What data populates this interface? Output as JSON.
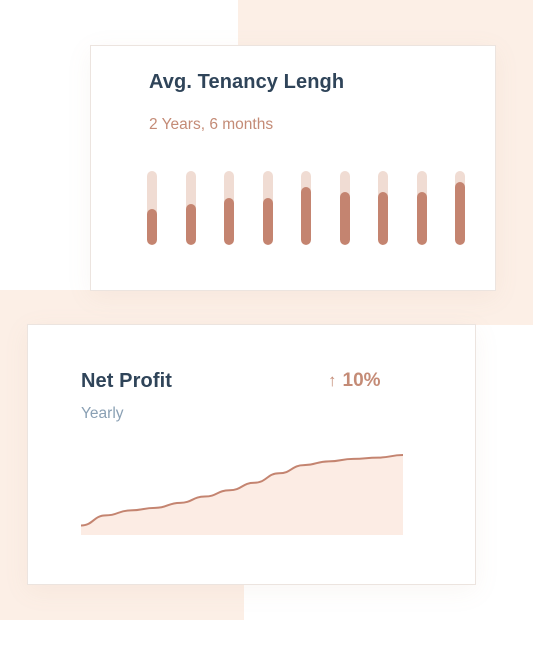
{
  "colors": {
    "background_accent": "#fcefe6",
    "title": "#2f4459",
    "accent": "#c48470",
    "bar_track": "#f0dcd3",
    "subtitle_muted": "#8aa0b4",
    "area_fill": "#fcece4"
  },
  "tenancy_card": {
    "title": "Avg. Tenancy Lengh",
    "subtitle": "2 Years, 6 months",
    "bar_levels": [
      0.48,
      0.55,
      0.63,
      0.63,
      0.78,
      0.72,
      0.72,
      0.72,
      0.85
    ]
  },
  "profit_card": {
    "title": "Net Profit",
    "subtitle": "Yearly",
    "change": {
      "icon": "arrow-up-icon",
      "arrow": "↑",
      "value": "10%"
    },
    "chart_data": {
      "type": "area",
      "x": [
        0,
        1,
        2,
        3,
        4,
        5,
        6,
        7,
        8,
        9,
        10,
        11,
        12,
        13
      ],
      "values": [
        0.12,
        0.28,
        0.36,
        0.4,
        0.48,
        0.58,
        0.68,
        0.8,
        0.95,
        1.08,
        1.14,
        1.18,
        1.2,
        1.24
      ],
      "ylim": [
        0,
        1.4
      ],
      "grid": false
    }
  }
}
